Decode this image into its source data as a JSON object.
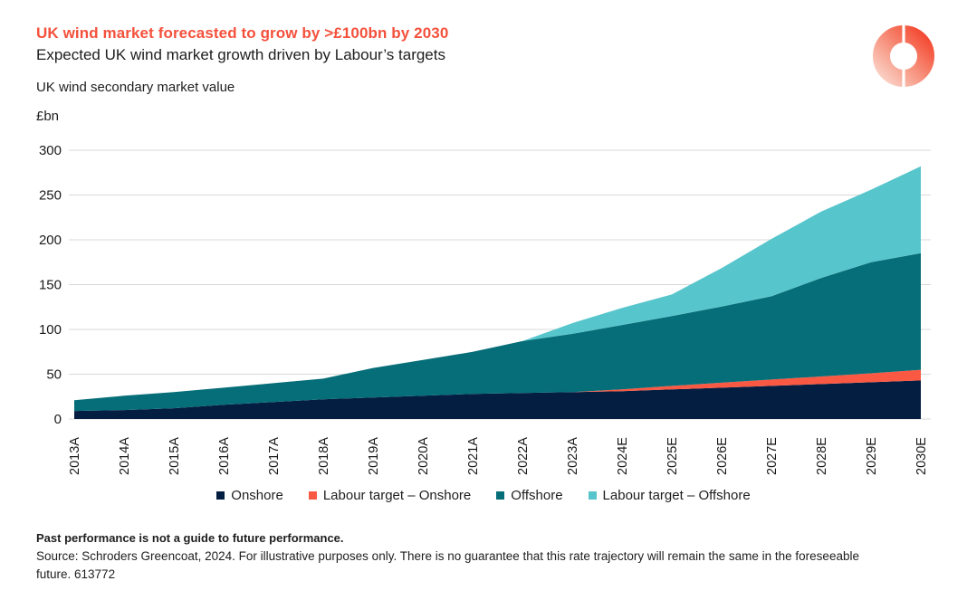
{
  "header": {
    "title": "UK wind market forecasted to grow by >£100bn by 2030",
    "subtitle": "Expected UK wind market growth driven by Labour’s targets",
    "measure_label": "UK wind secondary market value",
    "unit_label": "£bn"
  },
  "logo": {
    "name": "Schroders Greencoat ring logo",
    "gradient_start": "#FAD1C6",
    "gradient_mid": "#F79C88",
    "gradient_end": "#F4462E"
  },
  "colors": {
    "title_accent": "#F4513C",
    "gridline": "#D8D8D8",
    "axis_text": "#1A1A1A"
  },
  "chart_data": {
    "type": "area",
    "stacked": true,
    "title": "UK wind secondary market value",
    "xlabel": "",
    "ylabel": "£bn",
    "ylim": [
      0,
      300
    ],
    "yticks": [
      0,
      50,
      100,
      150,
      200,
      250,
      300
    ],
    "grid": "horizontal",
    "legend_position": "bottom",
    "categories": [
      "2013A",
      "2014A",
      "2015A",
      "2016A",
      "2017A",
      "2018A",
      "2019A",
      "2020A",
      "2021A",
      "2022A",
      "2023A",
      "2024E",
      "2025E",
      "2026E",
      "2027E",
      "2028E",
      "2029E",
      "2030E"
    ],
    "series": [
      {
        "name": "Onshore",
        "color": "#041E42",
        "values": [
          9,
          10,
          12,
          16,
          19,
          22,
          24,
          26,
          28,
          29,
          30,
          31,
          33,
          35,
          37,
          39,
          41,
          43
        ]
      },
      {
        "name": "Labour target – Onshore",
        "color": "#F95843",
        "values": [
          0,
          0,
          0,
          0,
          0,
          0,
          0,
          0,
          0,
          0,
          0,
          2,
          4,
          5.5,
          7,
          8.5,
          10,
          12
        ]
      },
      {
        "name": "Offshore",
        "color": "#066E78",
        "values": [
          12,
          16,
          18,
          19,
          21,
          23,
          33,
          40,
          47,
          58,
          65,
          72,
          78,
          85,
          93,
          110,
          124,
          130
        ]
      },
      {
        "name": "Labour target – Offshore",
        "color": "#57C5CC",
        "values": [
          0,
          0,
          0,
          0,
          0,
          0,
          0,
          0,
          0,
          0,
          12,
          19,
          24,
          43,
          64,
          74,
          81,
          97
        ]
      }
    ]
  },
  "footer": {
    "disclaimer": "Past performance is not a guide to future performance.",
    "source": "Source: Schroders Greencoat, 2024. For illustrative purposes only. There is no guarantee that this rate trajectory will remain the same in the foreseeable future. 613772"
  }
}
